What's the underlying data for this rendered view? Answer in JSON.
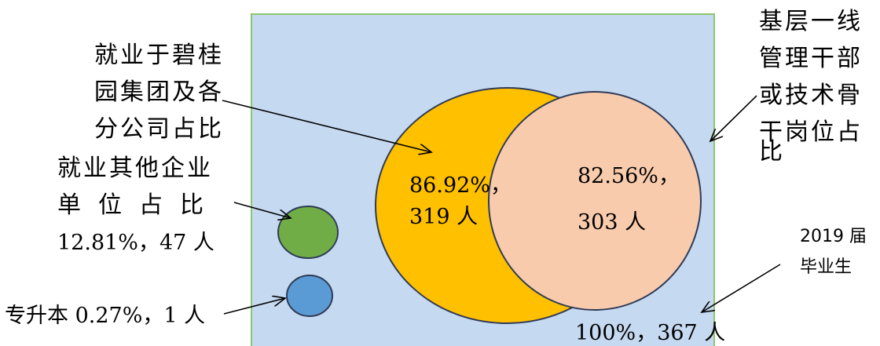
{
  "colors": {
    "background": "#c5d9f1",
    "frame_border": "#8cc66d",
    "orange": "#ffc000",
    "peach": "#f8cbad",
    "green": "#70ad47",
    "blue": "#5b9bd5",
    "outline": "#2f3b56"
  },
  "labels": {
    "biguiyuan": [
      "就业于碧桂",
      "园集团及各",
      "分公司占比"
    ],
    "backbone": [
      "基层一线",
      "管理干部",
      "或技术骨",
      "干岗位占",
      "比"
    ],
    "other": [
      "就业其他企业",
      "单位占比",
      "12.81%，47 人"
    ],
    "upgrade": "专升本 0.27%，1 人",
    "graduates": [
      "2019 届",
      "毕业生"
    ],
    "total": "100%，367 人"
  },
  "circles": {
    "orange": {
      "line1": "86.92%，",
      "line2": "319 人"
    },
    "peach": {
      "line1": "82.56%，",
      "line2": "303 人"
    }
  }
}
